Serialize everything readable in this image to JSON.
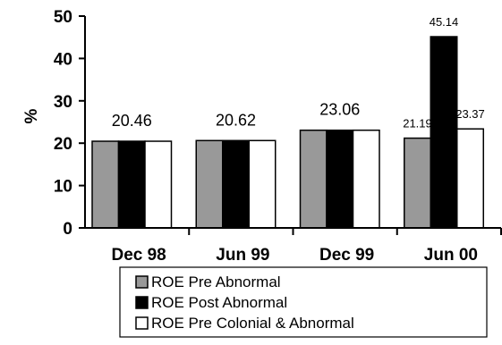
{
  "chart_data": {
    "type": "bar",
    "title": "",
    "xlabel": "",
    "ylabel": "%",
    "ylim": [
      0,
      50
    ],
    "yticks": [
      0,
      10,
      20,
      30,
      40,
      50
    ],
    "grid": false,
    "legend_position": "bottom",
    "categories": [
      "Dec 98",
      "Jun 99",
      "Dec 99",
      "Jun 00"
    ],
    "series": [
      {
        "name": "ROE Pre Abnormal",
        "color": "#999999",
        "values": [
          20.46,
          20.62,
          23.06,
          21.19
        ]
      },
      {
        "name": "ROE Post Abnormal",
        "color": "#000000",
        "values": [
          20.46,
          20.62,
          23.06,
          45.14
        ]
      },
      {
        "name": "ROE Pre Colonial & Abnormal",
        "color": "#ffffff",
        "values": [
          20.46,
          20.62,
          23.06,
          23.37
        ]
      }
    ],
    "data_labels": [
      {
        "category_index": 0,
        "series_index": 1,
        "text": "20.46",
        "size": "large"
      },
      {
        "category_index": 1,
        "series_index": 1,
        "text": "20.62",
        "size": "large"
      },
      {
        "category_index": 2,
        "series_index": 1,
        "text": "23.06",
        "size": "large"
      },
      {
        "category_index": 3,
        "series_index": 0,
        "text": "21.19",
        "size": "small"
      },
      {
        "category_index": 3,
        "series_index": 1,
        "text": "45.14",
        "size": "small"
      },
      {
        "category_index": 3,
        "series_index": 2,
        "text": "23.37",
        "size": "small"
      }
    ]
  }
}
